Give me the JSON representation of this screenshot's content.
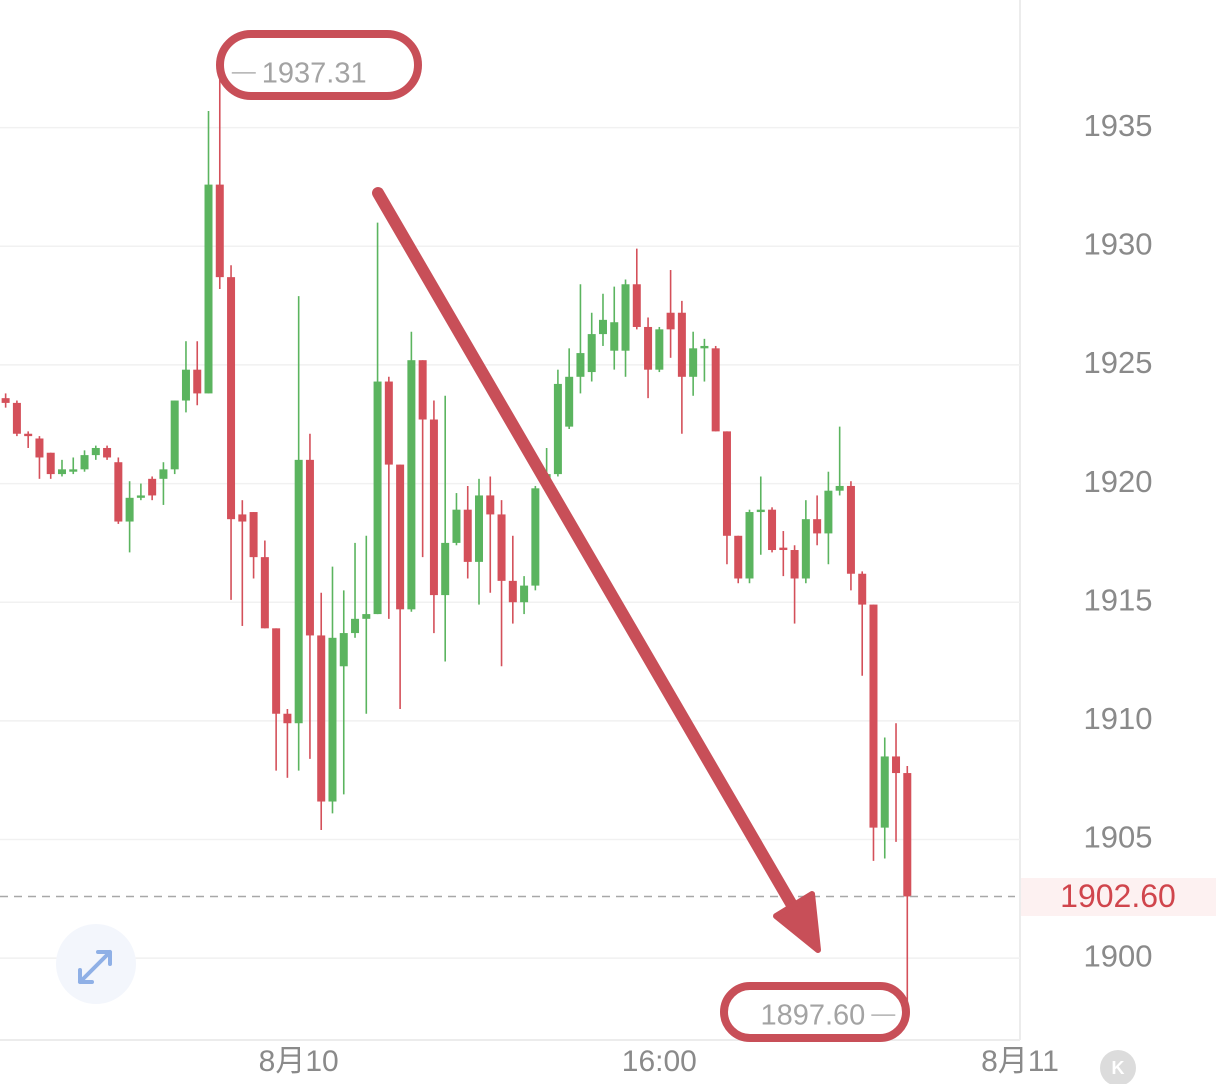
{
  "chart_data": {
    "type": "candlestick",
    "up_color": "#5bb45f",
    "down_color": "#d4505a",
    "grid": true,
    "open": [
      1923.6,
      1923.4,
      1922.1,
      1921.9,
      1921.3,
      1920.4,
      1920.5,
      1920.6,
      1921.2,
      1921.5,
      1920.9,
      1918.4,
      1919.4,
      1920.2,
      1920.2,
      1920.6,
      1923.5,
      1924.8,
      1923.8,
      1932.6,
      1928.7,
      1918.7,
      1918.8,
      1916.9,
      1913.9,
      1910.3,
      1909.9,
      1921.0,
      1913.6,
      1906.6,
      1912.3,
      1913.7,
      1914.3,
      1914.5,
      1924.3,
      1920.8,
      1914.7,
      1925.2,
      1922.7,
      1915.3,
      1917.5,
      1918.9,
      1916.7,
      1919.5,
      1918.7,
      1915.9,
      1915.0,
      1915.7,
      1919.8,
      1920.4,
      1922.4,
      1924.5,
      1924.7,
      1926.3,
      1925.6,
      1925.6,
      1928.4,
      1926.6,
      1924.8,
      1927.2,
      1927.2,
      1924.5,
      1925.7,
      1925.7,
      1922.2,
      1917.8,
      1916.0,
      1918.8,
      1918.9,
      1917.3,
      1917.2,
      1916.0,
      1918.5,
      1917.9,
      1919.7,
      1919.9,
      1916.2,
      1914.9,
      1905.5,
      1908.5,
      1907.8
    ],
    "high": [
      1923.8,
      1923.5,
      1922.2,
      1922.0,
      1921.3,
      1921.0,
      1921.1,
      1921.4,
      1921.6,
      1921.6,
      1921.1,
      1920.1,
      1920.0,
      1920.3,
      1920.9,
      1923.5,
      1926.0,
      1926.0,
      1935.7,
      1937.31,
      1929.2,
      1919.3,
      1918.8,
      1917.6,
      1913.9,
      1910.5,
      1927.9,
      1922.1,
      1915.4,
      1916.5,
      1915.5,
      1917.5,
      1917.8,
      1931.0,
      1924.5,
      1920.8,
      1926.4,
      1925.2,
      1923.5,
      1923.7,
      1919.6,
      1919.9,
      1920.2,
      1920.3,
      1919.3,
      1917.8,
      1916.1,
      1919.9,
      1921.5,
      1924.8,
      1925.7,
      1928.4,
      1927.2,
      1928.0,
      1928.3,
      1928.6,
      1929.9,
      1927.0,
      1926.6,
      1929.0,
      1927.7,
      1926.4,
      1926.1,
      1925.8,
      1922.2,
      1917.8,
      1918.9,
      1920.3,
      1919.0,
      1918.0,
      1917.4,
      1919.3,
      1919.5,
      1920.5,
      1922.4,
      1920.1,
      1916.3,
      1914.9,
      1909.3,
      1909.9,
      1908.1
    ],
    "low": [
      1923.2,
      1922.0,
      1921.5,
      1920.2,
      1920.2,
      1920.3,
      1920.4,
      1920.5,
      1921.0,
      1921.0,
      1918.3,
      1917.1,
      1919.3,
      1919.3,
      1919.1,
      1920.4,
      1923.0,
      1923.3,
      1923.8,
      1928.2,
      1915.1,
      1914.0,
      1916.0,
      1913.9,
      1907.9,
      1907.6,
      1907.9,
      1908.4,
      1905.4,
      1906.1,
      1906.9,
      1913.5,
      1910.3,
      1914.5,
      1914.3,
      1910.5,
      1914.6,
      1916.9,
      1913.7,
      1912.5,
      1917.4,
      1916.0,
      1914.9,
      1915.4,
      1912.3,
      1914.1,
      1914.5,
      1915.5,
      1919.6,
      1920.3,
      1922.3,
      1923.8,
      1924.3,
      1925.8,
      1924.8,
      1924.5,
      1926.5,
      1923.6,
      1924.7,
      1925.3,
      1922.1,
      1923.7,
      1924.3,
      1922.2,
      1916.6,
      1915.8,
      1915.8,
      1917.0,
      1917.1,
      1916.1,
      1914.1,
      1915.8,
      1917.4,
      1916.6,
      1919.5,
      1915.5,
      1911.9,
      1904.1,
      1904.2,
      1904.9,
      1897.6
    ],
    "close": [
      1923.4,
      1922.1,
      1922.0,
      1921.1,
      1920.4,
      1920.6,
      1920.6,
      1921.2,
      1921.5,
      1921.1,
      1918.4,
      1919.4,
      1919.5,
      1919.5,
      1920.6,
      1923.5,
      1924.8,
      1923.8,
      1932.6,
      1928.7,
      1918.5,
      1918.4,
      1916.9,
      1913.9,
      1910.3,
      1909.9,
      1921.0,
      1913.6,
      1906.6,
      1913.5,
      1913.7,
      1914.3,
      1914.5,
      1924.3,
      1920.8,
      1914.7,
      1925.2,
      1922.7,
      1915.3,
      1917.5,
      1918.9,
      1916.7,
      1919.5,
      1918.7,
      1915.9,
      1915.0,
      1915.7,
      1919.8,
      1920.4,
      1924.2,
      1924.5,
      1925.5,
      1926.3,
      1926.9,
      1926.8,
      1928.4,
      1926.6,
      1924.8,
      1926.5,
      1926.5,
      1924.5,
      1925.7,
      1925.8,
      1922.2,
      1917.8,
      1916.0,
      1918.8,
      1918.9,
      1917.2,
      1917.2,
      1916.0,
      1918.5,
      1917.9,
      1919.7,
      1919.9,
      1916.2,
      1914.9,
      1905.5,
      1908.5,
      1907.8,
      1902.6
    ],
    "xlim": [
      -0.5,
      90
    ],
    "xticks": [
      {
        "value": 26,
        "label": "8月10"
      },
      {
        "value": 58,
        "label": "16:00"
      },
      {
        "value": 90,
        "label": "8月11"
      }
    ],
    "ylim": [
      1896.55,
      1940.38
    ],
    "yticks": [
      1900,
      1905,
      1910,
      1915,
      1920,
      1925,
      1930,
      1935
    ],
    "high_marker": {
      "value": 1937.31,
      "label": "1937.31"
    },
    "low_marker": {
      "value": 1897.6,
      "label": "1897.60"
    },
    "last_price": {
      "value": 1902.6,
      "label": "1902.60"
    }
  },
  "controls": {
    "k_button": "K"
  }
}
